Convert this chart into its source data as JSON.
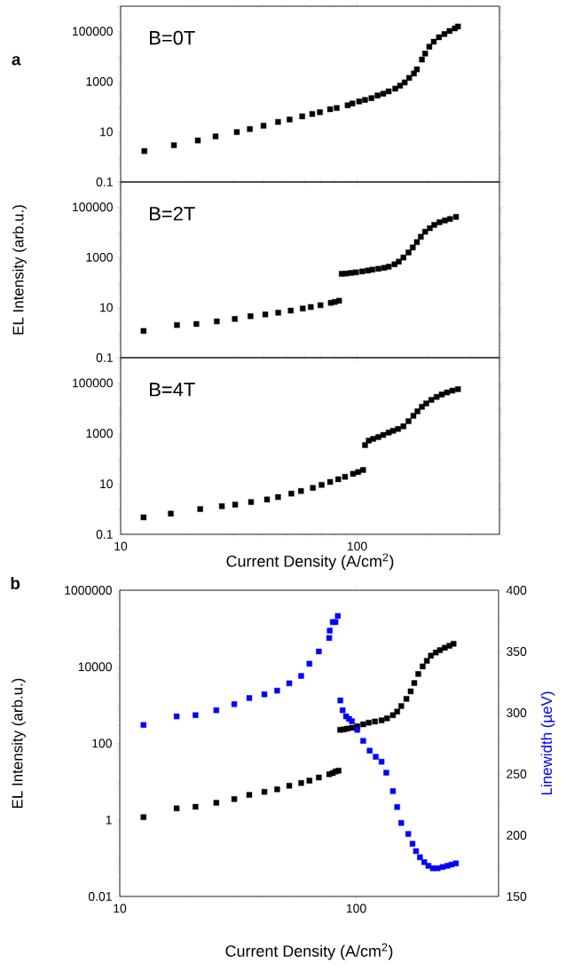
{
  "chart_data": [
    {
      "type": "scatter",
      "title": "a",
      "annotations": [
        "B=0T"
      ],
      "log": "xy",
      "marker": "square",
      "color": "#000000",
      "tick_labels": "y",
      "xlim": [
        10,
        400
      ],
      "xticks": [
        10,
        100
      ],
      "ylim": [
        0.1,
        1000000
      ],
      "yticks": [
        0.1,
        {
          "value": 1,
          "label": null
        },
        10,
        {
          "value": 100,
          "label": null
        },
        1000,
        {
          "value": 10000,
          "label": null
        },
        100000,
        {
          "value": 1000000,
          "label": null
        }
      ],
      "x": [
        12.6,
        16.8,
        21.2,
        25.2,
        31.0,
        35.2,
        40.2,
        46.3,
        51.8,
        58.6,
        64.6,
        69.6,
        76.9,
        82,
        91.2,
        95.5,
        102,
        108,
        115,
        122,
        129,
        136,
        145,
        152,
        159,
        166,
        174,
        179,
        188,
        194,
        202,
        211,
        222,
        234,
        246,
        259,
        267
      ],
      "values": [
        1.7,
        2.9,
        4.5,
        6.5,
        9.7,
        12.8,
        17.3,
        24.6,
        30.6,
        41,
        51,
        60,
        79,
        88,
        113,
        133,
        161,
        185,
        217,
        278,
        327,
        406,
        520,
        683,
        921,
        1390,
        2090,
        3060,
        7500,
        13000,
        24300,
        38600,
        58000,
        78000,
        103000,
        131000,
        155000
      ]
    },
    {
      "type": "scatter",
      "annotations": [
        "B=2T"
      ],
      "ylabel": "EL Intensity (arb.u.)",
      "log": "xy",
      "marker": "square",
      "color": "#000000",
      "tick_labels": "y",
      "xlim": [
        10,
        400
      ],
      "xticks": [
        10,
        100
      ],
      "ylim": [
        0.1,
        1000000
      ],
      "yticks": [
        0.1,
        {
          "value": 1,
          "label": null
        },
        10,
        {
          "value": 100,
          "label": null
        },
        1000,
        {
          "value": 10000,
          "label": null
        },
        100000,
        {
          "value": 1000000,
          "label": null
        }
      ],
      "x": [
        12.5,
        17.3,
        20.9,
        25.5,
        30.4,
        35.4,
        40.9,
        46.4,
        52.4,
        58.9,
        63.7,
        70.0,
        77.4,
        80.4,
        83.9,
        86.1,
        89.9,
        94.2,
        98.9,
        105,
        111,
        116,
        123,
        130,
        136,
        144,
        150,
        157,
        165,
        172,
        179,
        186,
        194,
        203,
        212,
        223,
        235,
        247,
        262
      ],
      "values": [
        1.16,
        2.0,
        2.2,
        2.8,
        3.5,
        4.5,
        5.3,
        6.2,
        7.5,
        9.1,
        10.4,
        12.3,
        15.3,
        16.6,
        18.5,
        219,
        225,
        238,
        251,
        273,
        296,
        321,
        348,
        378,
        421,
        524,
        668,
        977,
        1550,
        2460,
        4020,
        6550,
        10400,
        14400,
        19500,
        24800,
        29200,
        33500,
        40500
      ]
    },
    {
      "type": "scatter",
      "annotations": [
        "B=4T"
      ],
      "xlabel": "Current Density (A/cm$^{2}$)",
      "log": "xy",
      "marker": "square",
      "color": "#000000",
      "xlim": [
        10,
        400
      ],
      "xticks": [
        10,
        100
      ],
      "ylim": [
        0.1,
        1000000
      ],
      "yticks": [
        0.1,
        {
          "value": 1,
          "label": null
        },
        10,
        {
          "value": 100,
          "label": null
        },
        1000,
        {
          "value": 10000,
          "label": null
        },
        100000,
        {
          "value": 1000000,
          "label": null
        }
      ],
      "x": [
        12.5,
        16.3,
        21.7,
        26.8,
        30.5,
        35.6,
        41.6,
        46.3,
        52.7,
        57.9,
        65.0,
        70.8,
        76.9,
        83.2,
        88.9,
        96.1,
        101,
        106,
        108,
        112,
        117,
        123,
        129,
        136,
        142,
        149,
        157,
        165,
        173,
        180,
        188,
        196,
        206,
        217,
        228,
        240,
        253,
        267
      ],
      "values": [
        0.47,
        0.66,
        1.0,
        1.3,
        1.5,
        1.9,
        2.4,
        3.0,
        4.1,
        5.2,
        6.9,
        9.1,
        11.9,
        15.2,
        19.0,
        24.9,
        29.3,
        35.5,
        343,
        516,
        608,
        716,
        867,
        1080,
        1270,
        1500,
        1910,
        3050,
        4980,
        7500,
        11300,
        15300,
        21200,
        27900,
        34700,
        42000,
        49500,
        56600
      ]
    },
    {
      "type": "scatter",
      "title": "b",
      "xlabel": "Current Density (A/cm$^{2}$)",
      "ylabel": "EL Intensity (arb.u.)",
      "y2label": "Linewidth (µeV)",
      "log": "xy",
      "marker": "square",
      "xlim": [
        10,
        400
      ],
      "xticks": [
        10,
        100
      ],
      "ylim": [
        0.01,
        1000000
      ],
      "yticks": [
        0.01,
        {
          "value": 0.1,
          "label": null
        },
        1,
        {
          "value": 10,
          "label": null
        },
        100,
        {
          "value": 1000,
          "label": null
        },
        10000,
        {
          "value": 100000,
          "label": null
        },
        1000000
      ],
      "y2lim": [
        150,
        400
      ],
      "y2ticks": [
        150,
        200,
        250,
        300,
        350,
        400
      ],
      "series": [
        {
          "color": "#000000",
          "x": [
            12.6,
            17.4,
            20.9,
            25.6,
            30.5,
            35.3,
            40.9,
            46.3,
            52.1,
            58.5,
            63.4,
            69.5,
            76.9,
            79.6,
            81.8,
            84.2,
            85.5,
            88.5,
            91.6,
            95.9,
            101,
            107,
            113,
            120,
            128,
            135,
            143,
            149,
            155,
            163,
            170,
            176,
            183,
            191,
            199,
            207,
            217,
            226,
            237,
            248,
            258
          ],
          "values": [
            1.18,
            2.0,
            2.2,
            2.8,
            3.5,
            4.5,
            5.4,
            6.3,
            7.8,
            9.2,
            10.6,
            12.8,
            15.6,
            16.7,
            18.4,
            19.3,
            225,
            231,
            242,
            254,
            279,
            314,
            346,
            372,
            399,
            450,
            544,
            675,
            942,
            1450,
            2280,
            3760,
            6500,
            10200,
            14300,
            19500,
            23600,
            27200,
            31400,
            35400,
            39900
          ]
        },
        {
          "color": "#0000ff",
          "axis": "y2",
          "x": [
            12.6,
            17.4,
            20.9,
            25.6,
            30.5,
            35.3,
            40.9,
            46.3,
            52.1,
            58.5,
            63.4,
            69.5,
            76.9,
            77.3,
            79.6,
            81.7,
            83.6,
            85.7,
            87.6,
            90.6,
            93.2,
            95.9,
            101,
            107,
            114,
            121,
            128,
            134,
            143,
            149,
            155,
            166,
            173,
            179,
            186,
            194,
            202,
            211,
            221,
            232,
            243,
            253,
            264
          ],
          "values": [
            290,
            297,
            298,
            302,
            307,
            312,
            315,
            318,
            324,
            330,
            340,
            350,
            361,
            367,
            374,
            374,
            379,
            310,
            302,
            297,
            295,
            293,
            286,
            277,
            269,
            264,
            260,
            251,
            236,
            223,
            210,
            201,
            193,
            187,
            182,
            178,
            175,
            173,
            173,
            174,
            175,
            176,
            177
          ]
        }
      ]
    }
  ]
}
